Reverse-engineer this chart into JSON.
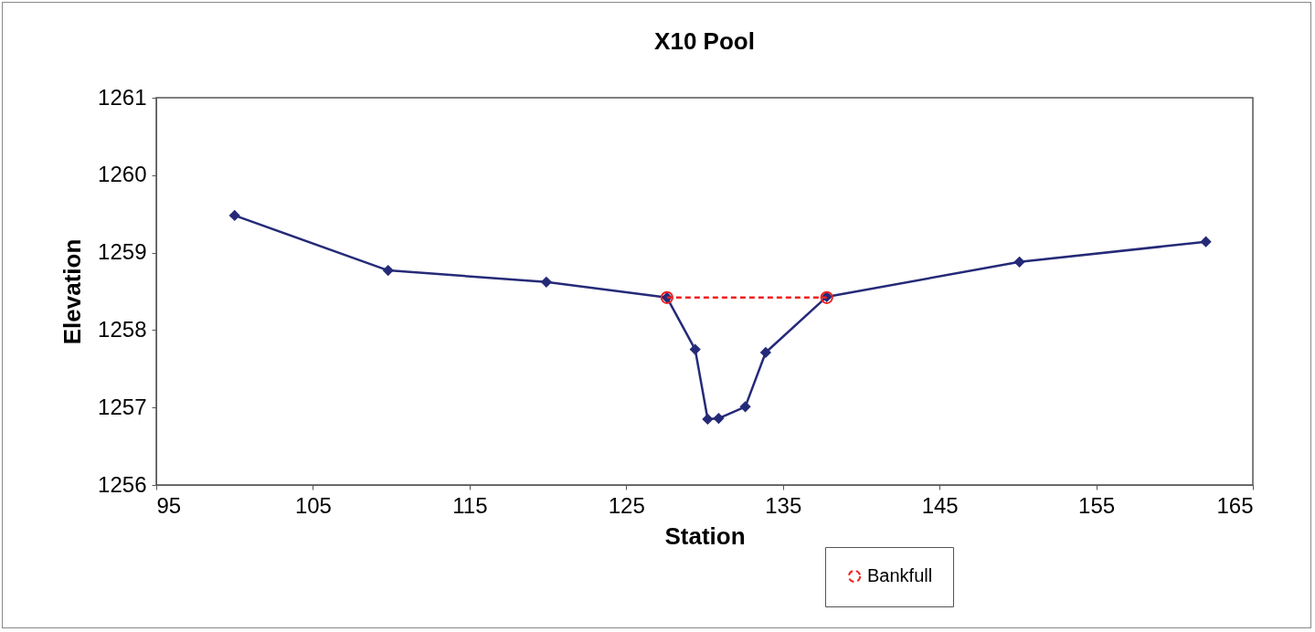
{
  "chart_data": {
    "type": "line",
    "title": "X10 Pool",
    "xlabel": "Station",
    "ylabel": "Elevation",
    "xlim": [
      95,
      165
    ],
    "xticks": [
      95,
      105,
      115,
      125,
      135,
      145,
      155,
      165
    ],
    "ylim": [
      1256,
      1261
    ],
    "yticks": [
      1256,
      1257,
      1258,
      1259,
      1260,
      1261
    ],
    "grid": false,
    "legend": "bottom right",
    "series": [
      {
        "color": "#252a78",
        "marker": "diamond",
        "line_style": "solid",
        "x": [
          100,
          109.8,
          119.9,
          127.6,
          129.4,
          130.2,
          130.9,
          132.6,
          133.9,
          137.8,
          150.1,
          162
        ],
        "values": [
          1259.48,
          1258.77,
          1258.62,
          1258.42,
          1257.75,
          1256.85,
          1256.86,
          1257.01,
          1257.71,
          1258.43,
          1258.88,
          1259.14
        ]
      },
      {
        "name": "Bankfull",
        "color": "#ee2222",
        "marker": "circle",
        "line_style": "dashed",
        "x": [
          127.6,
          137.8
        ],
        "values": [
          1258.42,
          1258.42
        ]
      }
    ]
  }
}
